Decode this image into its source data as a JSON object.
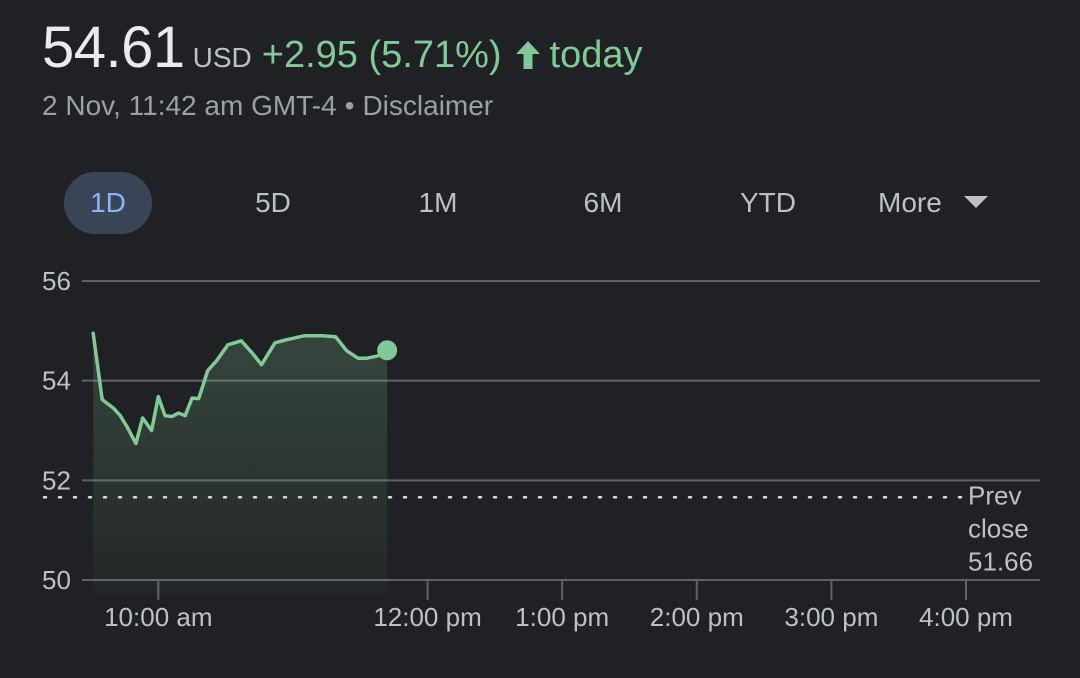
{
  "quote": {
    "price": "54.61",
    "currency": "USD",
    "change": "+2.95 (5.71%)",
    "period": "today",
    "timestamp": "2 Nov, 11:42 am GMT-4",
    "separator": "•",
    "disclaimer": "Disclaimer"
  },
  "colors": {
    "positive": "#81c995",
    "background": "#202124",
    "grid": "#5f6368",
    "text": "#bdc1c6",
    "active_tab_bg": "#394457",
    "active_tab_text": "#8ab4f8"
  },
  "tabs": [
    {
      "label": "1D",
      "active": true
    },
    {
      "label": "5D",
      "active": false
    },
    {
      "label": "1M",
      "active": false
    },
    {
      "label": "6M",
      "active": false
    },
    {
      "label": "YTD",
      "active": false
    }
  ],
  "more_label": "More",
  "chart_data": {
    "type": "line",
    "ylim": [
      50,
      56
    ],
    "y_ticks": [
      56,
      54,
      52,
      50
    ],
    "x_range": [
      "9:30",
      "16:00"
    ],
    "x_ticks": [
      {
        "time": "10:00",
        "label": "10:00 am"
      },
      {
        "time": "12:00",
        "label": "12:00 pm"
      },
      {
        "time": "13:00",
        "label": "1:00 pm"
      },
      {
        "time": "14:00",
        "label": "2:00 pm"
      },
      {
        "time": "15:00",
        "label": "3:00 pm"
      },
      {
        "time": "16:00",
        "label": "4:00 pm"
      }
    ],
    "prev_close": 51.66,
    "prev_close_label": [
      "Prev",
      "close",
      "51.66"
    ],
    "series": [
      {
        "x": [
          "9:31",
          "9:35",
          "9:40",
          "9:43",
          "9:46",
          "9:50",
          "9:53",
          "9:57",
          "10:00",
          "10:03",
          "10:06",
          "10:09",
          "10:12",
          "10:15",
          "10:18",
          "10:22",
          "10:26",
          "10:31",
          "10:37",
          "10:42",
          "10:46",
          "10:52",
          "10:57",
          "11:05",
          "11:13",
          "11:19",
          "11:24",
          "11:29",
          "11:33",
          "11:38",
          "11:42"
        ],
        "y": [
          54.95,
          53.62,
          53.45,
          53.3,
          53.08,
          52.74,
          53.25,
          53.0,
          53.68,
          53.3,
          53.28,
          53.35,
          53.3,
          53.65,
          53.64,
          54.2,
          54.4,
          54.72,
          54.8,
          54.55,
          54.32,
          54.76,
          54.82,
          54.9,
          54.9,
          54.88,
          54.6,
          54.45,
          54.45,
          54.5,
          54.61
        ]
      }
    ]
  }
}
